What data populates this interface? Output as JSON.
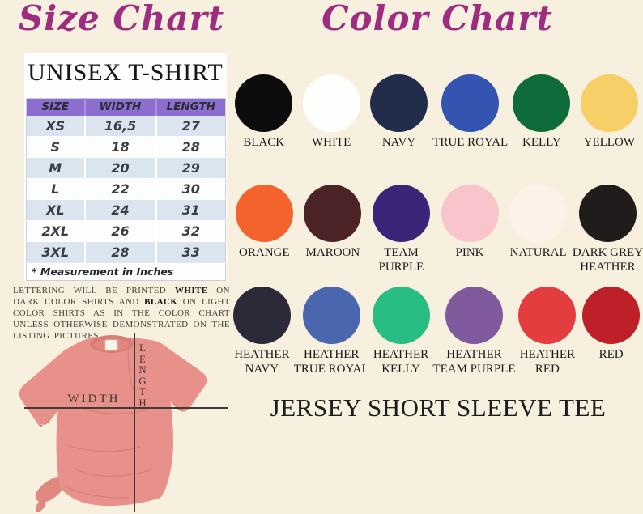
{
  "theme": {
    "background": "#f7f0df",
    "title_accent": "#9e2d81",
    "table_header_purple": "#8b6ed0",
    "table_row_blue": "#dbe5ef",
    "shirt_color": "#e8918a"
  },
  "size_chart": {
    "title": "Size Chart",
    "product": "UNISEX T-SHIRT",
    "columns": [
      "SIZE",
      "WIDTH",
      "LENGTH"
    ],
    "rows": [
      [
        "XS",
        "16,5",
        "27"
      ],
      [
        "S",
        "18",
        "28"
      ],
      [
        "M",
        "20",
        "29"
      ],
      [
        "L",
        "22",
        "30"
      ],
      [
        "XL",
        "24",
        "31"
      ],
      [
        "2XL",
        "26",
        "32"
      ],
      [
        "3XL",
        "28",
        "33"
      ]
    ],
    "footnote": "* Measurement in Inches"
  },
  "disclaimer": {
    "segments": [
      {
        "text": "LETTERING WILL BE PRINTED ",
        "bold": false
      },
      {
        "text": "WHITE",
        "bold": true
      },
      {
        "text": " ON DARK COLOR SHIRTS AND ",
        "bold": false
      },
      {
        "text": "BLACK",
        "bold": true
      },
      {
        "text": " ON LIGHT COLOR SHIRTS AS IN THE COLOR CHART UNLESS OTHERWISE DEMONSTRATED ON THE LISTING PICTURES",
        "bold": false
      }
    ]
  },
  "shirt_diagram": {
    "width_label": "WIDTH",
    "length_label": "LENGTH"
  },
  "color_chart": {
    "title": "Color Chart",
    "rows": [
      [
        {
          "name": "BLACK",
          "hex": "#0c0c0c"
        },
        {
          "name": "WHITE",
          "hex": "#fefefc"
        },
        {
          "name": "NAVY",
          "hex": "#222c4b"
        },
        {
          "name": "TRUE ROYAL",
          "hex": "#3354b1"
        },
        {
          "name": "KELLY",
          "hex": "#0f6b3a"
        },
        {
          "name": "YELLOW",
          "hex": "#f6cf67"
        }
      ],
      [
        {
          "name": "ORANGE",
          "hex": "#f4632c"
        },
        {
          "name": "MAROON",
          "hex": "#4c2327"
        },
        {
          "name": "TEAM\nPURPLE",
          "hex": "#3c2579"
        },
        {
          "name": "PINK",
          "hex": "#f9c5cd"
        },
        {
          "name": "NATURAL",
          "hex": "#fdf2e9"
        },
        {
          "name": "DARK GREY\nHEATHER",
          "hex": "#1f1c1b"
        }
      ],
      [
        {
          "name": "HEATHER\nNAVY",
          "hex": "#2c2939"
        },
        {
          "name": "HEATHER\nTRUE ROYAL",
          "hex": "#4a66ae"
        },
        {
          "name": "HEATHER\nKELLY",
          "hex": "#28bd83"
        },
        {
          "name": "HEATHER\nTEAM PURPLE",
          "hex": "#7f5b9e"
        },
        {
          "name": "HEATHER\nRED",
          "hex": "#e33d40"
        },
        {
          "name": "RED",
          "hex": "#bd2026"
        }
      ]
    ]
  },
  "footer": {
    "title": "JERSEY SHORT SLEEVE TEE"
  }
}
